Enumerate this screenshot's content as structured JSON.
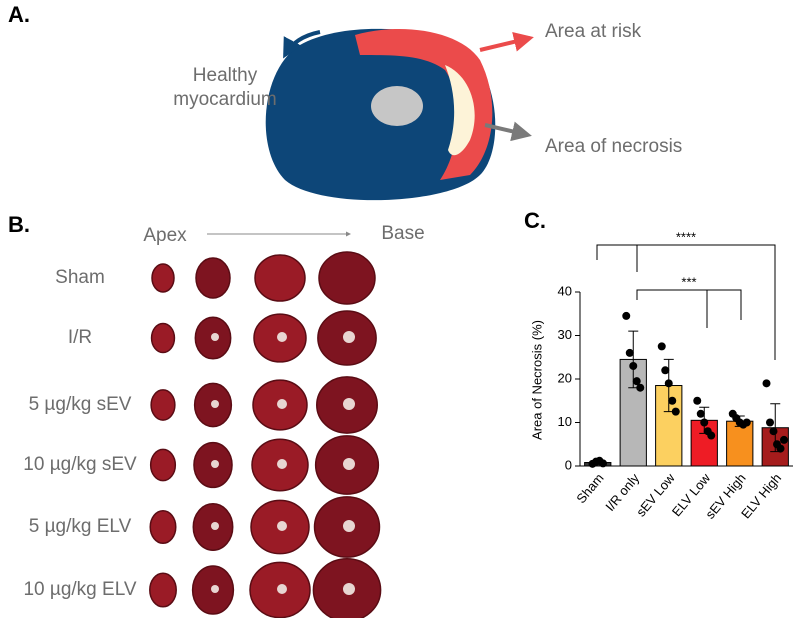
{
  "panel_a": {
    "label": "A.",
    "healthy": [
      "Healthy",
      "myocardium"
    ],
    "area_at_risk": "Area at risk",
    "area_of_necrosis": "Area of necrosis"
  },
  "panel_b": {
    "label": "B.",
    "apex": "Apex",
    "base": "Base",
    "rows": [
      "Sham",
      "I/R",
      "5 µg/kg sEV",
      "10 µg/kg sEV",
      "5 µg/kg ELV",
      "10 µg/kg ELV"
    ]
  },
  "chart_data": {
    "type": "bar",
    "panel_label": "C.",
    "y_label": "Area of Necrosis (%)",
    "categories": [
      "Sham",
      "I/R only",
      "sEV Low",
      "ELV Low",
      "sEV High",
      "ELV High"
    ],
    "values": [
      0.8,
      24.5,
      18.5,
      10.5,
      10.3,
      8.8
    ],
    "errors": [
      0.4,
      6.5,
      6,
      3,
      1.2,
      5.5
    ],
    "points": [
      [
        0.5,
        1,
        1.2,
        0.6
      ],
      [
        34.5,
        26,
        23,
        19.5,
        18
      ],
      [
        27.5,
        22,
        19,
        15,
        12.5
      ],
      [
        15,
        12,
        10,
        8,
        7
      ],
      [
        12,
        11,
        10,
        9.5,
        10
      ],
      [
        19,
        10,
        8,
        5,
        4,
        6
      ]
    ],
    "colors": [
      "#3a3a3a",
      "#b7b7b7",
      "#fcd060",
      "#ee1c25",
      "#f7901e",
      "#a51c1c"
    ],
    "ylim": [
      0,
      40
    ],
    "yticks": [
      0,
      10,
      20,
      30,
      40
    ],
    "significance": [
      "****",
      "***"
    ]
  }
}
